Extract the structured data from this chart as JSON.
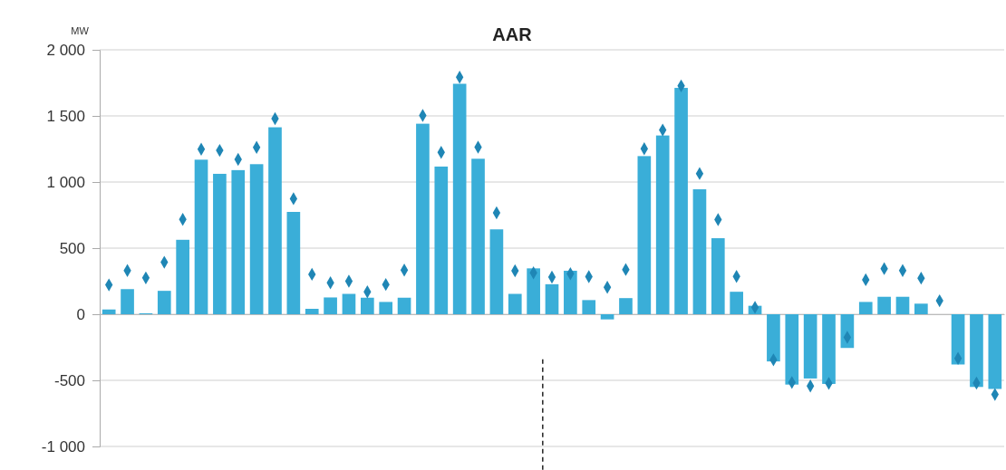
{
  "chart_data": {
    "type": "bar",
    "title": "AAR",
    "ylabel": "MW",
    "categories": [
      null,
      null,
      null,
      null,
      null,
      null,
      null,
      null,
      null,
      null,
      null,
      null,
      null,
      null,
      null,
      null,
      null,
      null,
      null,
      null,
      null,
      null,
      null,
      null,
      null,
      null,
      null,
      null,
      null,
      null,
      null,
      null,
      null,
      null,
      null,
      null,
      null,
      null,
      null,
      null,
      null,
      null,
      null,
      null,
      null,
      null,
      null,
      null,
      null
    ],
    "ylim": [
      -1000,
      2000
    ],
    "yticks": [
      {
        "value": -1000,
        "label": "-1 000"
      },
      -500,
      0,
      500,
      {
        "value": 1000,
        "label": "1 000"
      },
      {
        "value": 1500,
        "label": "1 500"
      },
      {
        "value": 2000,
        "label": "2 000"
      }
    ],
    "grid": "y",
    "series": [
      {
        "color": "#3aaed8",
        "values": [
          36,
          190,
          7,
          177,
          563,
          1169,
          1062,
          1090,
          1135,
          1414,
          774,
          41,
          127,
          154,
          125,
          93,
          125,
          1441,
          1117,
          1743,
          1176,
          642,
          154,
          347,
          227,
          329,
          107,
          -39,
          122,
          1196,
          1352,
          1712,
          945,
          575,
          170,
          64,
          -357,
          -532,
          -486,
          -527,
          -255,
          93,
          132,
          132,
          80,
          0,
          -380,
          -550,
          -565
        ]
      },
      {
        "type": "scatter",
        "color": "#1f86b5",
        "marker": "diamond",
        "values": [
          222,
          331,
          275,
          393,
          717,
          1248,
          1239,
          1171,
          1262,
          1480,
          874,
          302,
          238,
          250,
          170,
          225,
          334,
          1503,
          1224,
          1793,
          1264,
          767,
          329,
          313,
          281,
          306,
          284,
          204,
          338,
          1252,
          1393,
          1727,
          1064,
          716,
          286,
          52,
          -345,
          -516,
          -543,
          -523,
          -175,
          261,
          345,
          330,
          273,
          102,
          -334,
          -520,
          -607
        ]
      }
    ]
  }
}
